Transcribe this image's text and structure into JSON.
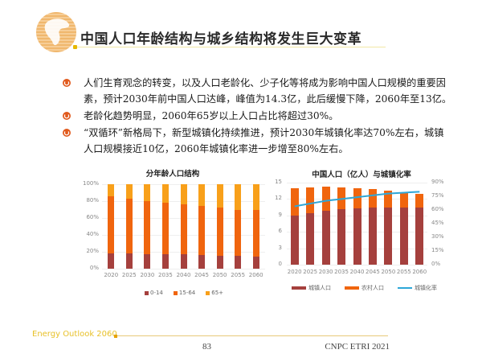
{
  "header": {
    "title": "中国人口年龄结构与城乡结构将发生巨大变革",
    "logo_icon": "globe-icon"
  },
  "bullets": [
    {
      "icon": "bullet-circle-icon",
      "lines": [
        "人们生育观念的转变，以及人口老龄化、少子化等将成为影响中国人口规模的重要因",
        "素，预计2030年前中国人口达峰，峰值为14.3亿，此后缓慢下降，2060年至13亿。"
      ]
    },
    {
      "icon": "bullet-circle-icon",
      "lines": [
        "老龄化趋势明显，2060年65岁以上人口占比将超过30%。"
      ]
    },
    {
      "icon": "bullet-circle-icon",
      "lines": [
        "“双循环”新格局下，新型城镇化持续推进，预计2030年城镇化率达70%左右，城镇",
        "人口规模接近10亿，2060年城镇化率进一步增至80%左右。"
      ]
    }
  ],
  "colors": {
    "dark_red": "#a5403d",
    "orange": "#f0650e",
    "light_orange": "#f8a01a",
    "line_blue": "#2ea7d8",
    "accent_yellow": "#e8c12a"
  },
  "chart_data": [
    {
      "type": "bar",
      "stacked": true,
      "title": "分年龄人口结构",
      "categories": [
        "2020",
        "2025",
        "2030",
        "2035",
        "2040",
        "2045",
        "2050",
        "2055",
        "2060"
      ],
      "series": [
        {
          "name": "0-14",
          "values": [
            18,
            18,
            17,
            17,
            17,
            16,
            15,
            15,
            14
          ]
        },
        {
          "name": "15-64",
          "values": [
            68,
            65,
            63,
            61,
            59,
            58,
            57,
            55,
            56
          ]
        },
        {
          "name": "65+",
          "values": [
            14,
            17,
            20,
            22,
            24,
            26,
            28,
            30,
            30
          ]
        }
      ],
      "xlabel": "",
      "ylabel": "",
      "yticks": [
        "0%",
        "20%",
        "40%",
        "60%",
        "80%",
        "100%"
      ],
      "ylim": [
        0,
        100
      ],
      "grid": true,
      "legend_position": "bottom"
    },
    {
      "type": "bar",
      "stacked": true,
      "title": "中国人口（亿人）与城镇化率",
      "categories": [
        "2020",
        "2025",
        "2030",
        "2035",
        "2040",
        "2045",
        "2050",
        "2055",
        "2060"
      ],
      "series": [
        {
          "name": "城镇人口",
          "type": "bar",
          "values": [
            9.0,
            9.4,
            9.9,
            10.1,
            10.3,
            10.4,
            10.5,
            10.5,
            10.5
          ]
        },
        {
          "name": "农村人口",
          "type": "bar",
          "values": [
            5.0,
            4.7,
            4.3,
            4.0,
            3.7,
            3.4,
            3.0,
            2.7,
            2.5
          ]
        },
        {
          "name": "城镇化率",
          "type": "line",
          "axis": "right",
          "values": [
            64,
            67,
            70,
            72,
            74,
            76,
            78,
            79,
            80
          ]
        }
      ],
      "yticks_left": [
        "0",
        "3",
        "6",
        "9",
        "12",
        "15"
      ],
      "ylim_left": [
        0,
        15
      ],
      "yticks_right": [
        "0%",
        "15%",
        "30%",
        "45%",
        "60%",
        "75%",
        "90%"
      ],
      "ylim_right": [
        0,
        90
      ],
      "grid": true,
      "legend_position": "bottom"
    }
  ],
  "footer": {
    "brand": "Energy Outlook 2060",
    "page_number": "83",
    "copyright": "CNPC ETRI 2021"
  }
}
